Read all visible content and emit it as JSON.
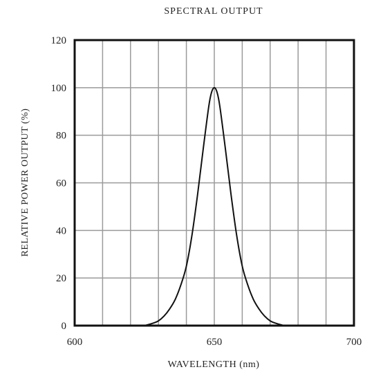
{
  "chart_data": {
    "type": "line",
    "title": "SPECTRAL OUTPUT",
    "xlabel": "WAVELENGTH (nm)",
    "ylabel": "RELATIVE POWER OUTPUT (%)",
    "xlim": [
      600,
      700
    ],
    "ylim": [
      0,
      120
    ],
    "x_ticks": [
      600,
      650,
      700
    ],
    "y_ticks": [
      0,
      20,
      40,
      60,
      80,
      100,
      120
    ],
    "x_grid_step": 10,
    "y_grid_step": 20,
    "grid": true,
    "series": [
      {
        "x": [
          625,
          628,
          630,
          632,
          634,
          636,
          638,
          640,
          642,
          644,
          646,
          648,
          649,
          650,
          651,
          652,
          654,
          656,
          658,
          660,
          662,
          664,
          666,
          668,
          670,
          672,
          675
        ],
        "y": [
          0,
          1,
          2,
          4,
          7,
          11,
          17,
          25,
          38,
          55,
          74,
          92,
          98,
          100,
          98,
          92,
          74,
          55,
          38,
          25,
          17,
          11,
          7,
          4,
          2,
          1,
          0
        ]
      }
    ]
  },
  "colors": {
    "line": "#111111",
    "grid": "#9a9a9a",
    "frame": "#111111",
    "text": "#222222"
  }
}
